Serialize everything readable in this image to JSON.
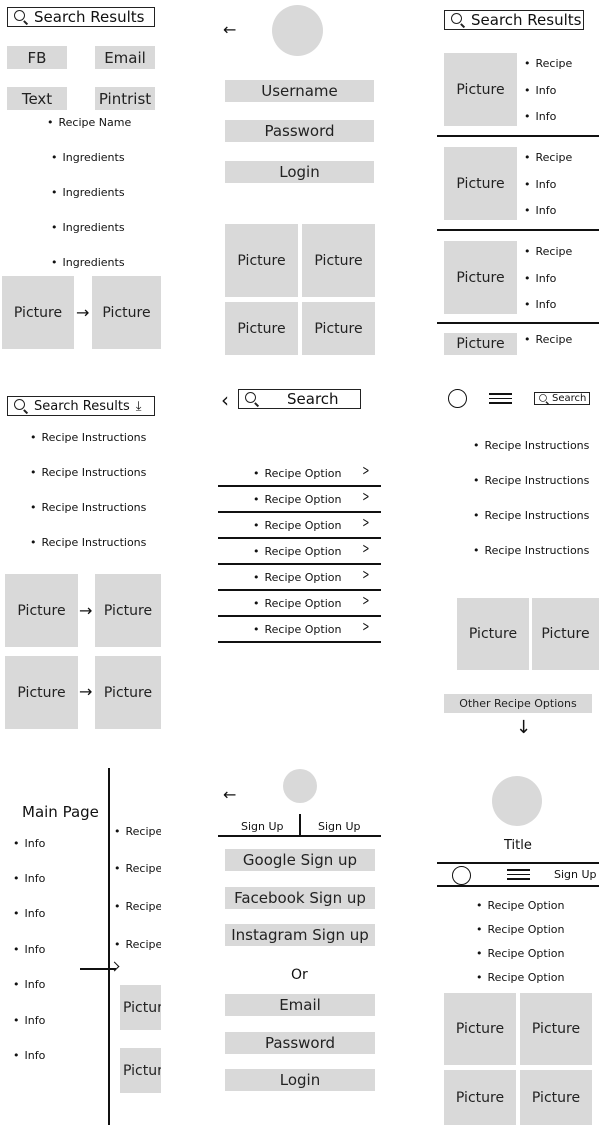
{
  "picture_label": "Picture",
  "recipe_label": "Recipe",
  "info_label": "Info",
  "recipe_instructions": "Recipe Instructions",
  "recipe_option": "Recipe Option",
  "ingredients": "Ingredients",
  "recipe_cut": "Recipe (",
  "arrow_left": "←",
  "arrow_right": "→",
  "arrow_down": "↓",
  "s1": {
    "search": "Search Results",
    "share": [
      "FB",
      "Email",
      "Text",
      "Pintrist"
    ],
    "recipe_name": "Recipe Name"
  },
  "s2": {
    "username": "Username",
    "password": "Password",
    "login": "Login"
  },
  "s3": {
    "search": "Search Results"
  },
  "s4": {
    "search": "Search Results",
    "download_icon": "⤓"
  },
  "s5": {
    "back": "‹",
    "search": "Search"
  },
  "s6": {
    "search": "Search",
    "other": "Other Recipe Options"
  },
  "s7": {
    "main_page": "Main Page",
    "picture_cut": "Picture",
    "picture_cut2": "Pictur"
  },
  "s8": {
    "tab1": "Sign Up",
    "tab2": "Sign Up",
    "google": "Google Sign up",
    "facebook": "Facebook Sign up",
    "instagram": "Instagram Sign up",
    "or": "Or",
    "email": "Email",
    "password": "Password",
    "login": "Login"
  },
  "s9": {
    "title": "Title",
    "signup": "Sign Up"
  }
}
